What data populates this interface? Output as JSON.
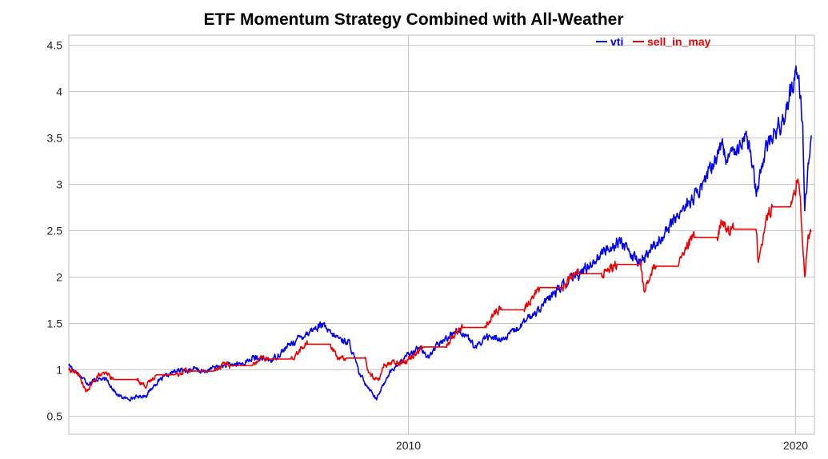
{
  "chart_data": {
    "type": "line",
    "title": "ETF Momentum Strategy Combined with All-Weather",
    "xlabel": "",
    "ylabel": "",
    "x_range": [
      2001.25,
      2020.5
    ],
    "ylim": [
      0.3,
      4.6
    ],
    "x_ticks": [
      {
        "value": 2010,
        "label": "2010"
      },
      {
        "value": 2020,
        "label": "2020"
      }
    ],
    "y_ticks": [
      {
        "value": 0.5,
        "label": "0.5"
      },
      {
        "value": 1,
        "label": "1"
      },
      {
        "value": 1.5,
        "label": "1.5"
      },
      {
        "value": 2,
        "label": "2"
      },
      {
        "value": 2.5,
        "label": "2.5"
      },
      {
        "value": 3,
        "label": "3"
      },
      {
        "value": 3.5,
        "label": "3.5"
      },
      {
        "value": 4,
        "label": "4"
      },
      {
        "value": 4.5,
        "label": "4.5"
      }
    ],
    "grid": true,
    "legend_position": "top-right",
    "series": [
      {
        "name": "vti",
        "color": "#0000ee",
        "points": [
          [
            2001.25,
            1.05
          ],
          [
            2001.5,
            0.95
          ],
          [
            2001.75,
            0.85
          ],
          [
            2002.0,
            0.9
          ],
          [
            2002.25,
            0.88
          ],
          [
            2002.5,
            0.72
          ],
          [
            2002.75,
            0.68
          ],
          [
            2003.0,
            0.7
          ],
          [
            2003.25,
            0.72
          ],
          [
            2003.5,
            0.85
          ],
          [
            2003.75,
            0.92
          ],
          [
            2004.0,
            0.98
          ],
          [
            2004.5,
            1.0
          ],
          [
            2004.75,
            0.97
          ],
          [
            2005.0,
            1.02
          ],
          [
            2005.5,
            1.05
          ],
          [
            2005.75,
            1.06
          ],
          [
            2006.0,
            1.12
          ],
          [
            2006.5,
            1.1
          ],
          [
            2007.0,
            1.28
          ],
          [
            2007.5,
            1.42
          ],
          [
            2007.8,
            1.48
          ],
          [
            2008.0,
            1.38
          ],
          [
            2008.5,
            1.28
          ],
          [
            2008.75,
            0.95
          ],
          [
            2009.0,
            0.8
          ],
          [
            2009.2,
            0.68
          ],
          [
            2009.5,
            0.95
          ],
          [
            2010.0,
            1.15
          ],
          [
            2010.3,
            1.25
          ],
          [
            2010.5,
            1.12
          ],
          [
            2010.75,
            1.25
          ],
          [
            2011.25,
            1.42
          ],
          [
            2011.5,
            1.38
          ],
          [
            2011.75,
            1.22
          ],
          [
            2012.0,
            1.35
          ],
          [
            2012.5,
            1.32
          ],
          [
            2013.0,
            1.5
          ],
          [
            2013.5,
            1.7
          ],
          [
            2014.0,
            1.9
          ],
          [
            2014.5,
            2.05
          ],
          [
            2015.0,
            2.25
          ],
          [
            2015.5,
            2.4
          ],
          [
            2015.75,
            2.22
          ],
          [
            2016.0,
            2.15
          ],
          [
            2016.5,
            2.4
          ],
          [
            2016.8,
            2.55
          ],
          [
            2017.0,
            2.68
          ],
          [
            2017.5,
            2.9
          ],
          [
            2018.0,
            3.3
          ],
          [
            2018.1,
            3.45
          ],
          [
            2018.25,
            3.25
          ],
          [
            2018.5,
            3.42
          ],
          [
            2018.75,
            3.55
          ],
          [
            2019.0,
            2.92
          ],
          [
            2019.25,
            3.4
          ],
          [
            2019.5,
            3.55
          ],
          [
            2019.75,
            3.75
          ],
          [
            2020.0,
            4.15
          ],
          [
            2020.1,
            4.22
          ],
          [
            2020.2,
            3.6
          ],
          [
            2020.25,
            2.78
          ],
          [
            2020.35,
            3.2
          ],
          [
            2020.42,
            3.52
          ]
        ]
      },
      {
        "name": "sell_in_may",
        "color": "#ee0000",
        "points": [
          [
            2001.25,
            1.0
          ],
          [
            2001.5,
            0.95
          ],
          [
            2001.7,
            0.75
          ],
          [
            2002.0,
            0.93
          ],
          [
            2002.25,
            0.95
          ],
          [
            2002.4,
            0.89
          ],
          [
            2003.0,
            0.89
          ],
          [
            2003.25,
            0.82
          ],
          [
            2003.5,
            0.94
          ],
          [
            2004.0,
            0.94
          ],
          [
            2004.25,
            0.99
          ],
          [
            2004.4,
            0.98
          ],
          [
            2005.0,
            0.98
          ],
          [
            2005.25,
            1.07
          ],
          [
            2005.4,
            1.04
          ],
          [
            2006.0,
            1.04
          ],
          [
            2006.25,
            1.12
          ],
          [
            2006.4,
            1.11
          ],
          [
            2007.0,
            1.11
          ],
          [
            2007.25,
            1.22
          ],
          [
            2007.4,
            1.27
          ],
          [
            2008.0,
            1.27
          ],
          [
            2008.25,
            1.1
          ],
          [
            2008.4,
            1.12
          ],
          [
            2008.9,
            1.12
          ],
          [
            2009.0,
            0.95
          ],
          [
            2009.25,
            0.88
          ],
          [
            2009.4,
            1.05
          ],
          [
            2010.0,
            1.1
          ],
          [
            2010.25,
            1.2
          ],
          [
            2010.4,
            1.24
          ],
          [
            2011.0,
            1.24
          ],
          [
            2011.25,
            1.4
          ],
          [
            2011.4,
            1.45
          ],
          [
            2012.0,
            1.45
          ],
          [
            2012.25,
            1.62
          ],
          [
            2012.4,
            1.64
          ],
          [
            2013.0,
            1.64
          ],
          [
            2013.25,
            1.8
          ],
          [
            2013.4,
            1.88
          ],
          [
            2014.0,
            1.88
          ],
          [
            2014.25,
            2.0
          ],
          [
            2014.4,
            2.03
          ],
          [
            2015.0,
            2.03
          ],
          [
            2015.25,
            2.12
          ],
          [
            2015.4,
            2.13
          ],
          [
            2016.0,
            2.13
          ],
          [
            2016.1,
            1.85
          ],
          [
            2016.25,
            2.0
          ],
          [
            2016.4,
            2.11
          ],
          [
            2017.0,
            2.11
          ],
          [
            2017.25,
            2.35
          ],
          [
            2017.4,
            2.42
          ],
          [
            2018.0,
            2.42
          ],
          [
            2018.1,
            2.62
          ],
          [
            2018.25,
            2.5
          ],
          [
            2018.4,
            2.51
          ],
          [
            2019.0,
            2.51
          ],
          [
            2019.05,
            2.18
          ],
          [
            2019.25,
            2.6
          ],
          [
            2019.4,
            2.75
          ],
          [
            2019.9,
            2.75
          ],
          [
            2020.0,
            2.95
          ],
          [
            2020.1,
            3.08
          ],
          [
            2020.15,
            2.75
          ],
          [
            2020.25,
            2.0
          ],
          [
            2020.35,
            2.45
          ],
          [
            2020.42,
            2.55
          ]
        ]
      }
    ]
  }
}
